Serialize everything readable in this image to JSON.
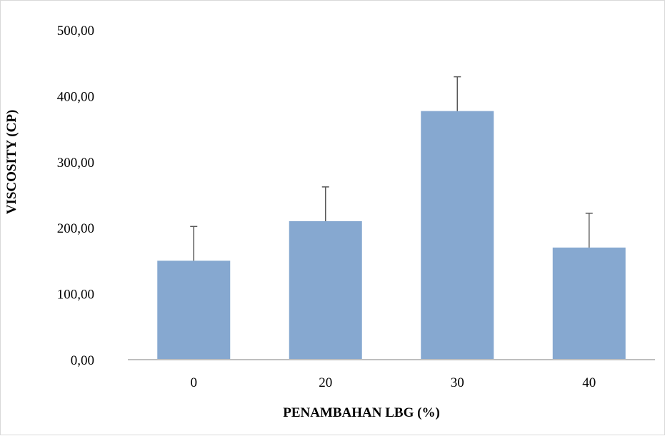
{
  "chart_data": {
    "type": "bar",
    "title": "",
    "xlabel": "PENAMBAHAN LBG (%)",
    "ylabel": "VISCOSITY (CP)",
    "categories": [
      "0",
      "20",
      "30",
      "40"
    ],
    "values": [
      150,
      210,
      377,
      170
    ],
    "error_plus": [
      52,
      52,
      52,
      52
    ],
    "ylim": [
      0,
      500
    ],
    "y_ticks": [
      0,
      100,
      200,
      300,
      400,
      500
    ],
    "y_tick_labels": [
      "0,00",
      "100,00",
      "200,00",
      "300,00",
      "400,00",
      "500,00"
    ],
    "bar_color": "#86a8d0",
    "error_bar_color": "#595959",
    "axis_color": "#bfbfbf",
    "grid": false,
    "legend": "none"
  }
}
